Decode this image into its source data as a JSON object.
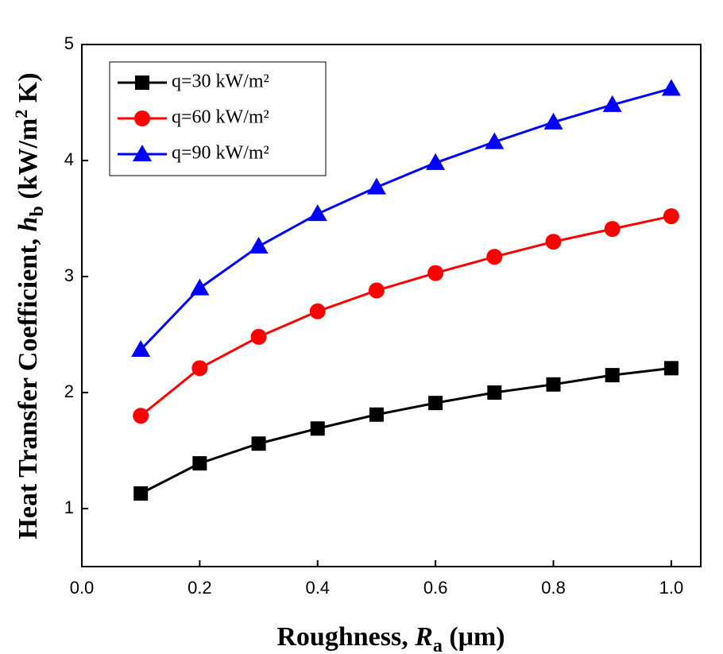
{
  "chart_data": {
    "type": "line",
    "x_label": [
      "Roughness, ",
      "R",
      "a",
      " (μm)"
    ],
    "y_label": [
      "Heat Transfer Coefficient, ",
      "h",
      "b",
      " (kW/m",
      "2",
      " K)"
    ],
    "x": [
      0.1,
      0.2,
      0.3,
      0.4,
      0.5,
      0.6,
      0.7,
      0.8,
      0.9,
      1.0
    ],
    "series": [
      {
        "name": "q=30 kW/m²",
        "color": "#000000",
        "marker": "square",
        "values": [
          1.13,
          1.39,
          1.56,
          1.69,
          1.81,
          1.91,
          2.0,
          2.07,
          2.15,
          2.21
        ]
      },
      {
        "name": "q=60 kW/m²",
        "color": "#ff0000",
        "marker": "circle",
        "values": [
          1.8,
          2.21,
          2.48,
          2.7,
          2.88,
          3.03,
          3.17,
          3.3,
          3.41,
          3.52
        ]
      },
      {
        "name": "q=90 kW/m²",
        "color": "#0000ff",
        "marker": "triangle",
        "values": [
          2.37,
          2.9,
          3.26,
          3.54,
          3.77,
          3.98,
          4.16,
          4.33,
          4.48,
          4.62
        ]
      }
    ],
    "xlim": [
      0,
      1.05
    ],
    "ylim": [
      0.5,
      5
    ],
    "xticks": [
      {
        "value": 0,
        "label": "0.0"
      },
      0.2,
      0.4,
      0.6,
      0.8,
      {
        "value": 1,
        "label": "1.0"
      }
    ],
    "yticks": [
      1,
      2,
      3,
      4,
      5
    ],
    "legend": "upper left",
    "grid": false
  }
}
